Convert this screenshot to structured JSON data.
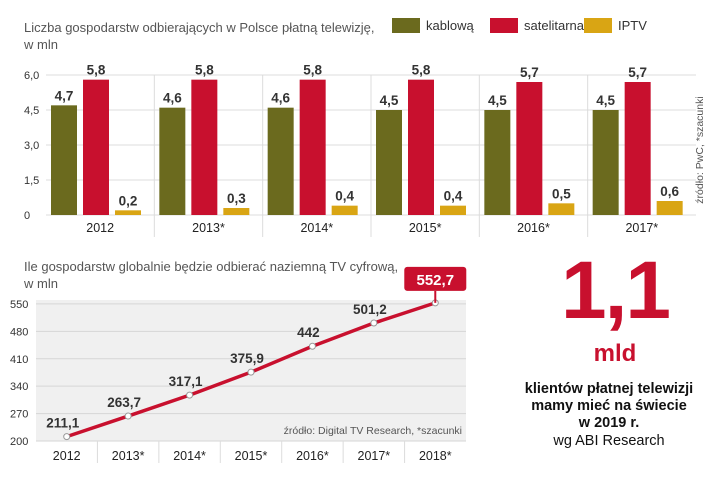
{
  "colors": {
    "kablowa": "#6b6a1e",
    "satelitarna": "#c8102e",
    "iptv": "#d9a514",
    "line": "#c8102e",
    "accent": "#c8102e",
    "grid": "#dcdcdc",
    "panel": "#f0f0f0"
  },
  "chart_data": [
    {
      "type": "bar",
      "title": "Liczba gospodarstw odbierających w Polsce płatną telewizję,",
      "unit_label": "w mln",
      "categories": [
        "2012",
        "2013*",
        "2014*",
        "2015*",
        "2016*",
        "2017*"
      ],
      "series": [
        {
          "name": "kablową",
          "values": [
            4.7,
            4.6,
            4.6,
            4.5,
            4.5,
            4.5
          ],
          "labels": [
            "4,7",
            "4,6",
            "4,6",
            "4,5",
            "4,5",
            "4,5"
          ]
        },
        {
          "name": "satelitarna",
          "values": [
            5.8,
            5.8,
            5.8,
            5.8,
            5.7,
            5.7
          ],
          "labels": [
            "5,8",
            "5,8",
            "5,8",
            "5,8",
            "5,7",
            "5,7"
          ]
        },
        {
          "name": "IPTV",
          "values": [
            0.2,
            0.3,
            0.4,
            0.4,
            0.5,
            0.6
          ],
          "labels": [
            "0,2",
            "0,3",
            "0,4",
            "0,4",
            "0,5",
            "0,6"
          ]
        }
      ],
      "ylim": [
        0,
        6
      ],
      "yticks": [
        0,
        1.5,
        3,
        4.5,
        6
      ],
      "ytick_labels": [
        "0",
        "1,5",
        "3,0",
        "4,5",
        "6,0"
      ],
      "source_note": "źródło: PwC, *szacunki",
      "legend_position": "top"
    },
    {
      "type": "line",
      "title": "Ile gospodarstw globalnie będzie odbierać naziemną TV cyfrową,",
      "unit_label": "w mln",
      "categories": [
        "2012",
        "2013*",
        "2014*",
        "2015*",
        "2016*",
        "2017*",
        "2018*"
      ],
      "values": [
        211.1,
        263.7,
        317.1,
        375.9,
        442,
        501.2,
        552.7
      ],
      "labels": [
        "211,1",
        "263,7",
        "317,1",
        "375,9",
        "442",
        "501,2",
        "552,7"
      ],
      "ylim": [
        200,
        560
      ],
      "yticks": [
        200,
        270,
        340,
        410,
        480,
        550
      ],
      "ytick_labels": [
        "200",
        "270",
        "340",
        "410",
        "480",
        "550"
      ],
      "source_note": "źródło: Digital TV Research, *szacunki"
    }
  ],
  "callout": {
    "value": "1,1",
    "unit": "mld",
    "desc_lines": [
      "klientów płatnej telewizji",
      "mamy mieć na świecie",
      "w 2019 r."
    ],
    "source": "wg ABI Research"
  }
}
